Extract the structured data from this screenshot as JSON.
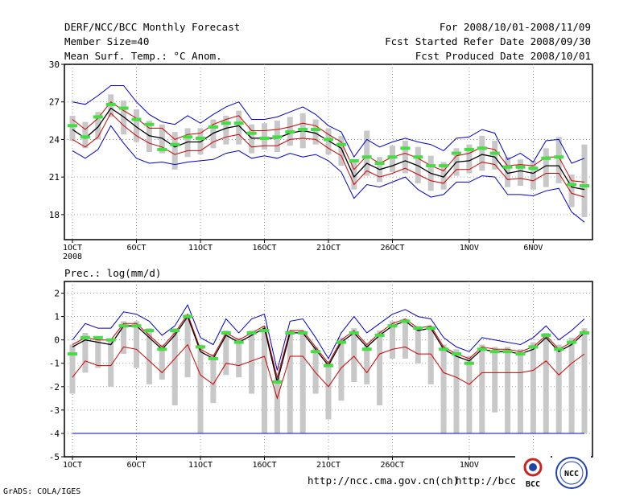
{
  "header": {
    "title": "DERF/NCC/BCC Monthly Forecast",
    "member_size": "Member Size=40",
    "variable": "Mean Surf. Temp.: °C Anom.",
    "period": "For 2008/10/01-2008/11/09",
    "started": "Fcst Started Refer Date 2008/09/30",
    "produced": "Fcst Produced Date 2008/10/01"
  },
  "footer": {
    "credit": "GrADS: COLA/IGES",
    "url1": "http://ncc.cma.gov.cn(ch)",
    "url2": "http://bcc.c",
    "logo_bcc_text": "BCC",
    "logo_ncc_text": "NCC"
  },
  "colors": {
    "ensemble_mean": "#000000",
    "spread_band": "#cc0000",
    "envelope": "#0000cc",
    "member_bar": "#c8c8c8",
    "climatology_mark": "#44dd44"
  },
  "chart_data": [
    {
      "type": "line",
      "title": "Mean Surf. Temp.: °C Anom.",
      "x_ticks": [
        "1OCT",
        "6OCT",
        "11OCT",
        "16OCT",
        "21OCT",
        "26OCT",
        "1NOV",
        "6NOV"
      ],
      "x_ticks_sub": [
        "2008",
        "",
        "",
        "",
        "",
        "",
        "",
        ""
      ],
      "x_range": [
        0,
        40
      ],
      "ylim": [
        16,
        30
      ],
      "y_ticks": [
        18,
        21,
        24,
        27,
        30
      ],
      "series": [
        {
          "name": "ensemble-mean",
          "values": [
            24.8,
            24.1,
            25.0,
            26.5,
            25.8,
            25.0,
            24.3,
            24.1,
            23.4,
            23.8,
            23.8,
            24.5,
            24.9,
            25.1,
            24.1,
            24.1,
            24.1,
            24.5,
            24.7,
            24.5,
            23.9,
            23.3,
            21.0,
            22.1,
            21.6,
            21.9,
            22.3,
            21.9,
            21.3,
            21.0,
            22.2,
            22.3,
            22.8,
            22.6,
            21.3,
            21.5,
            21.3,
            21.9,
            21.9,
            20.2,
            20.0
          ]
        },
        {
          "name": "upper-spread",
          "values": [
            25.6,
            24.8,
            25.7,
            27.0,
            26.3,
            25.7,
            24.9,
            24.9,
            24.0,
            24.4,
            24.5,
            25.2,
            25.6,
            25.9,
            24.7,
            24.7,
            24.8,
            25.0,
            25.3,
            25.1,
            24.4,
            23.8,
            21.6,
            22.7,
            22.1,
            22.6,
            22.9,
            22.5,
            21.9,
            21.5,
            22.7,
            22.9,
            23.4,
            23.2,
            21.9,
            22.0,
            21.9,
            22.6,
            22.6,
            20.7,
            20.6
          ]
        },
        {
          "name": "lower-spread",
          "values": [
            24.0,
            23.4,
            24.2,
            26.1,
            25.1,
            24.3,
            23.7,
            23.4,
            22.8,
            23.1,
            23.1,
            23.8,
            24.2,
            24.4,
            23.4,
            23.5,
            23.5,
            24.0,
            24.1,
            24.0,
            23.3,
            22.7,
            20.4,
            21.5,
            21.0,
            21.3,
            21.7,
            21.2,
            20.7,
            20.5,
            21.6,
            21.6,
            22.2,
            22.0,
            20.8,
            20.9,
            20.7,
            21.3,
            21.3,
            19.7,
            19.4
          ]
        },
        {
          "name": "upper-envelope",
          "values": [
            27.0,
            26.8,
            27.5,
            28.3,
            28.3,
            27.0,
            26.0,
            25.4,
            25.2,
            25.9,
            25.3,
            26.0,
            26.6,
            27.0,
            25.6,
            25.6,
            25.8,
            26.2,
            26.6,
            26.0,
            25.1,
            24.6,
            22.6,
            24.0,
            23.4,
            23.8,
            24.1,
            23.8,
            23.6,
            23.1,
            24.1,
            24.2,
            24.8,
            24.5,
            22.4,
            22.9,
            22.2,
            23.9,
            24.0,
            22.1,
            22.5
          ]
        },
        {
          "name": "lower-envelope",
          "values": [
            23.1,
            22.5,
            23.2,
            25.1,
            23.7,
            22.5,
            22.1,
            22.2,
            22.0,
            22.2,
            22.3,
            22.4,
            22.9,
            23.1,
            22.5,
            22.7,
            22.5,
            22.9,
            22.6,
            22.8,
            22.3,
            21.4,
            19.3,
            20.4,
            20.2,
            20.6,
            21.0,
            20.0,
            19.4,
            19.6,
            20.6,
            20.6,
            21.1,
            21.0,
            19.6,
            19.6,
            19.5,
            19.9,
            20.1,
            18.2,
            17.4
          ]
        },
        {
          "name": "climatology",
          "values": [
            25.1,
            24.2,
            25.8,
            26.8,
            26.5,
            25.6,
            25.2,
            23.2,
            23.6,
            24.2,
            24.1,
            25.0,
            25.3,
            25.3,
            24.5,
            24.1,
            24.2,
            24.6,
            24.8,
            24.8,
            24.0,
            23.6,
            22.3,
            22.6,
            22.1,
            22.6,
            23.3,
            22.6,
            21.9,
            21.9,
            22.9,
            23.2,
            23.3,
            22.9,
            21.8,
            21.8,
            21.7,
            22.5,
            22.6,
            20.4,
            20.3
          ]
        },
        {
          "name": "member-bar-top",
          "values": [
            25.9,
            25.4,
            26.2,
            27.6,
            27.1,
            26.4,
            25.5,
            25.2,
            24.6,
            24.9,
            24.9,
            25.6,
            25.9,
            26.3,
            25.2,
            25.3,
            25.5,
            25.8,
            26.1,
            25.6,
            24.9,
            24.3,
            22.3,
            24.7,
            22.6,
            23.5,
            23.9,
            23.4,
            22.7,
            22.2,
            23.3,
            23.6,
            24.3,
            23.9,
            22.6,
            22.4,
            22.3,
            23.3,
            24.2,
            21.2,
            23.6
          ]
        },
        {
          "name": "member-bar-bottom",
          "values": [
            23.9,
            23.3,
            24.0,
            25.8,
            24.4,
            23.8,
            23.0,
            22.9,
            21.6,
            22.6,
            22.8,
            23.3,
            23.6,
            23.6,
            22.9,
            23.2,
            23.0,
            23.5,
            23.3,
            23.6,
            22.8,
            21.9,
            20.0,
            21.1,
            20.6,
            21.4,
            21.3,
            20.5,
            19.9,
            20.0,
            21.1,
            21.3,
            21.5,
            21.6,
            20.2,
            20.3,
            20.0,
            20.2,
            20.5,
            18.6,
            17.8
          ]
        }
      ]
    },
    {
      "type": "line",
      "title": "Prec.: log(mm/d)",
      "x_ticks": [
        "1OCT",
        "6OCT",
        "11OCT",
        "16OCT",
        "21OCT",
        "26OCT",
        "1NOV",
        "6NOV"
      ],
      "x_range": [
        0,
        40
      ],
      "ylim": [
        -5,
        2.5
      ],
      "y_ticks": [
        -5,
        -4,
        -3,
        -2,
        -1,
        0,
        1,
        2
      ],
      "series": [
        {
          "name": "ensemble-mean",
          "values": [
            -0.3,
            0.0,
            -0.1,
            -0.2,
            0.6,
            0.6,
            0.1,
            -0.4,
            0.2,
            1.0,
            -0.5,
            -0.8,
            0.2,
            -0.1,
            0.2,
            0.5,
            -1.8,
            0.3,
            0.3,
            -0.4,
            -1.1,
            -0.1,
            0.3,
            -0.3,
            0.2,
            0.6,
            0.8,
            0.4,
            0.5,
            -0.4,
            -0.7,
            -0.9,
            -0.4,
            -0.5,
            -0.5,
            -0.6,
            -0.4,
            0.1,
            -0.5,
            -0.2,
            0.3
          ]
        },
        {
          "name": "upper-spread",
          "values": [
            -0.2,
            0.1,
            0.0,
            0.0,
            0.7,
            0.7,
            0.2,
            -0.3,
            0.3,
            1.1,
            -0.4,
            -0.7,
            0.3,
            0.0,
            0.3,
            0.6,
            -1.6,
            0.4,
            0.4,
            -0.3,
            -1.0,
            0.0,
            0.4,
            -0.2,
            0.3,
            0.7,
            0.9,
            0.5,
            0.6,
            -0.3,
            -0.6,
            -0.8,
            -0.3,
            -0.4,
            -0.4,
            -0.5,
            -0.3,
            0.2,
            -0.4,
            -0.1,
            0.4
          ]
        },
        {
          "name": "lower-spread",
          "values": [
            -1.6,
            -0.9,
            -1.1,
            -1.1,
            -0.3,
            -0.4,
            -0.9,
            -1.4,
            -0.8,
            -0.2,
            -1.5,
            -1.9,
            -1.0,
            -1.1,
            -0.9,
            -0.7,
            -2.5,
            -0.7,
            -0.7,
            -1.4,
            -2.0,
            -1.2,
            -0.7,
            -1.4,
            -0.6,
            -0.4,
            -0.3,
            -0.6,
            -0.6,
            -1.4,
            -1.6,
            -1.9,
            -1.4,
            -1.4,
            -1.4,
            -1.4,
            -1.3,
            -0.9,
            -1.5,
            -1.0,
            -0.6
          ]
        },
        {
          "name": "upper-envelope",
          "values": [
            0.0,
            0.7,
            0.5,
            0.5,
            1.2,
            1.1,
            0.8,
            0.2,
            0.6,
            1.5,
            0.1,
            -0.2,
            0.9,
            0.3,
            0.9,
            1.1,
            -1.3,
            0.8,
            0.9,
            0.1,
            -0.8,
            0.3,
            1.0,
            0.3,
            0.7,
            1.1,
            1.3,
            1.0,
            0.9,
            0.1,
            -0.3,
            -0.5,
            0.1,
            0.0,
            -0.1,
            -0.2,
            0.1,
            0.6,
            0.0,
            0.4,
            0.9
          ]
        },
        {
          "name": "lower-envelope",
          "values": [
            -4.0,
            -4.0,
            -4.0,
            -4.0,
            -4.0,
            -4.0,
            -4.0,
            -4.0,
            -4.0,
            -4.0,
            -4.0,
            -4.0,
            -4.0,
            -4.0,
            -4.0,
            -4.0,
            -4.0,
            -4.0,
            -4.0,
            -4.0,
            -4.0,
            -4.0,
            -4.0,
            -4.0,
            -4.0,
            -4.0,
            -4.0,
            -4.0,
            -4.0,
            -4.0,
            -4.0,
            -4.0,
            -4.0,
            -4.0,
            -4.0,
            -4.0,
            -4.0,
            -4.0,
            -4.0,
            -4.0,
            -4.0
          ]
        },
        {
          "name": "climatology",
          "values": [
            -0.6,
            0.1,
            0.1,
            0.0,
            0.6,
            0.6,
            0.4,
            -0.4,
            0.4,
            1.0,
            -0.3,
            -0.8,
            0.3,
            -0.1,
            0.3,
            0.4,
            -1.8,
            0.3,
            0.3,
            -0.5,
            -1.1,
            -0.1,
            0.3,
            -0.4,
            0.2,
            0.6,
            0.8,
            0.5,
            0.5,
            -0.4,
            -0.6,
            -1.0,
            -0.4,
            -0.5,
            -0.5,
            -0.6,
            -0.3,
            0.2,
            -0.4,
            -0.1,
            0.3
          ]
        },
        {
          "name": "member-bar-top",
          "values": [
            -0.2,
            0.3,
            0.1,
            0.0,
            0.8,
            0.8,
            0.5,
            -0.2,
            0.5,
            1.1,
            -0.2,
            -0.6,
            0.4,
            0.1,
            0.4,
            0.6,
            -1.6,
            0.4,
            0.4,
            -0.3,
            -0.9,
            0.1,
            0.5,
            -0.2,
            0.4,
            0.8,
            0.9,
            0.6,
            0.6,
            -0.2,
            -0.4,
            -0.7,
            -0.2,
            -0.3,
            -0.3,
            -0.4,
            -0.1,
            0.3,
            -0.2,
            0.1,
            0.5
          ]
        },
        {
          "name": "member-bar-bottom",
          "values": [
            -2.3,
            -1.4,
            -1.2,
            -2.0,
            -0.6,
            -1.2,
            -1.9,
            -1.7,
            -2.8,
            -1.6,
            -4.0,
            -2.7,
            -1.5,
            -1.6,
            -2.3,
            -4.0,
            -4.0,
            -4.0,
            -4.0,
            -2.3,
            -3.4,
            -2.6,
            -1.8,
            -1.9,
            -2.8,
            -0.8,
            -0.8,
            -1.0,
            -1.9,
            -4.0,
            -4.0,
            -4.0,
            -4.0,
            -3.1,
            -4.0,
            -4.0,
            -4.0,
            -4.0,
            -4.0,
            -4.0,
            -4.0
          ]
        }
      ]
    }
  ]
}
